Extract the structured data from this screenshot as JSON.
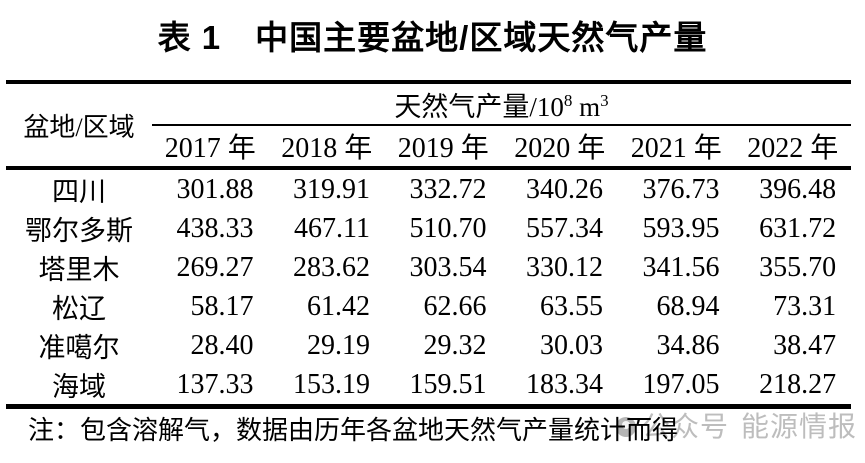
{
  "title": "表 1　中国主要盆地/区域天然气产量",
  "table": {
    "corner_header": "盆地/区域",
    "unit_header": {
      "prefix": "天然气产量/10",
      "sup1": "8",
      "mid": " m",
      "sup2": "3"
    },
    "year_headers": [
      "2017 年",
      "2018 年",
      "2019 年",
      "2020 年",
      "2021 年",
      "2022 年"
    ],
    "rows": [
      {
        "name": "四川",
        "values": [
          "301.88",
          "319.91",
          "332.72",
          "340.26",
          "376.73",
          "396.48"
        ]
      },
      {
        "name": "鄂尔多斯",
        "values": [
          "438.33",
          "467.11",
          "510.70",
          "557.34",
          "593.95",
          "631.72"
        ]
      },
      {
        "name": "塔里木",
        "values": [
          "269.27",
          "283.62",
          "303.54",
          "330.12",
          "341.56",
          "355.70"
        ]
      },
      {
        "name": "松辽",
        "values": [
          "58.17",
          "61.42",
          "62.66",
          "63.55",
          "68.94",
          "73.31"
        ]
      },
      {
        "name": "准噶尔",
        "values": [
          "28.40",
          "29.19",
          "29.32",
          "30.03",
          "34.86",
          "38.47"
        ]
      },
      {
        "name": "海域",
        "values": [
          "137.33",
          "153.19",
          "159.51",
          "183.34",
          "197.05",
          "218.27"
        ]
      }
    ]
  },
  "note": "注：包含溶解气，数据由历年各盆地天然气产量统计而得",
  "watermark": {
    "label_1": "公众号",
    "label_2": "能源情报",
    "icon": "wechat-official-account-icon",
    "color": "#bdbdbd"
  },
  "colors": {
    "background": "#ffffff",
    "text": "#000000",
    "rule": "#000000"
  }
}
